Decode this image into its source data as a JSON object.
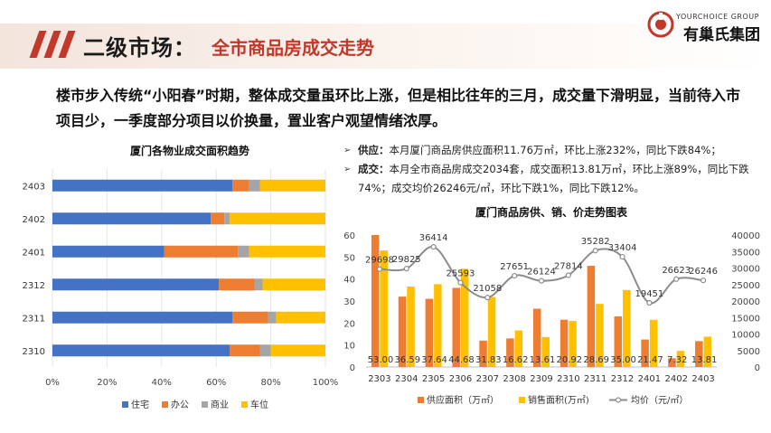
{
  "header": {
    "title": "二级市场",
    "colon": "：",
    "subtitle": "全市商品房成交走势",
    "logo_small": "YOURCHOICE GROUP",
    "logo_big": "有巢氏集团"
  },
  "summary": "楼市步入传统“小阳春”时期，整体成交量虽环比上涨，但是相比往年的三月，成交量下滑明显，当前待入市项目少，一季度部分项目以价换量，置业客户观望情绪浓厚。",
  "bullets": [
    {
      "label": "供应：",
      "text": "本月厦门商品房供应面积11.76万㎡，环比上涨232%，同比下跌84%；"
    },
    {
      "label": "成交：",
      "text": "本月全市商品房成交2034套，成交面积13.81万㎡，环比上涨89%，同比下跌74%；成交均价26246元/㎡，环比下跌1%，同比下跌12%。"
    }
  ],
  "colors": {
    "accent_red": "#c0392b",
    "residential": "#4472c4",
    "office": "#ed7d31",
    "commercial": "#a5a5a5",
    "parking": "#ffc000",
    "price_line": "#8c8c8c"
  },
  "chart_data": [
    {
      "type": "bar",
      "orientation": "horizontal",
      "stacked": true,
      "percent": true,
      "title": "厦门各物业成交面积趋势",
      "categories": [
        "2403",
        "2402",
        "2401",
        "2312",
        "2311",
        "2310"
      ],
      "series": [
        {
          "name": "住宅",
          "values": [
            66,
            58,
            41,
            61,
            66,
            65
          ]
        },
        {
          "name": "办公",
          "values": [
            6,
            5,
            27,
            13,
            13,
            11
          ]
        },
        {
          "name": "商业",
          "values": [
            4,
            2,
            4,
            3,
            3,
            4
          ]
        },
        {
          "name": "车位",
          "values": [
            24,
            35,
            28,
            23,
            18,
            20
          ]
        }
      ],
      "xticks": [
        "0%",
        "20%",
        "40%",
        "60%",
        "80%",
        "100%"
      ],
      "xlim": [
        0,
        100
      ],
      "legend": "bottom"
    },
    {
      "type": "bar",
      "title": "厦门商品房供、销、价走势图表",
      "categories": [
        "2303",
        "2304",
        "2305",
        "2306",
        "2307",
        "2308",
        "2309",
        "2310",
        "2311",
        "2312",
        "2401",
        "2402",
        "2403"
      ],
      "series": [
        {
          "name": "供应面积（万㎡）",
          "axis": "left",
          "values": [
            60,
            32,
            31,
            36,
            12,
            13,
            26.5,
            21.5,
            46,
            23,
            12.5,
            4,
            11.76
          ]
        },
        {
          "name": "销售面积(万㎡)",
          "axis": "left",
          "values": [
            53.0,
            36.59,
            37.64,
            44.68,
            31.83,
            16.62,
            13.61,
            20.92,
            28.69,
            35.0,
            21.47,
            7.32,
            13.81
          ]
        },
        {
          "name": "均价（元/㎡）",
          "axis": "right",
          "type": "line",
          "values": [
            29698,
            29825,
            36414,
            25593,
            21058,
            27651,
            26124,
            27814,
            35282,
            33404,
            19451,
            26623,
            26246
          ]
        }
      ],
      "sales_labels": [
        "53.00",
        "36.59",
        "37.64",
        "44.68",
        "31.83",
        "16.62",
        "13.61",
        "20.92",
        "28.69",
        "35.00",
        "21.47",
        "7.32",
        "13.81"
      ],
      "price_labels": [
        "29698",
        "29825",
        "36414",
        "25593",
        "21058",
        "27651",
        "26124",
        "27814",
        "35282",
        "33404",
        "19451",
        "26623",
        "26246"
      ],
      "y_left_ticks": [
        "0",
        "10",
        "20",
        "30",
        "40",
        "50",
        "60"
      ],
      "y_right_ticks": [
        "0",
        "5000",
        "10000",
        "15000",
        "20000",
        "25000",
        "30000",
        "35000",
        "40000"
      ],
      "ylim_left": [
        0,
        60
      ],
      "ylim_right": [
        0,
        40000
      ],
      "legend": "bottom"
    }
  ]
}
